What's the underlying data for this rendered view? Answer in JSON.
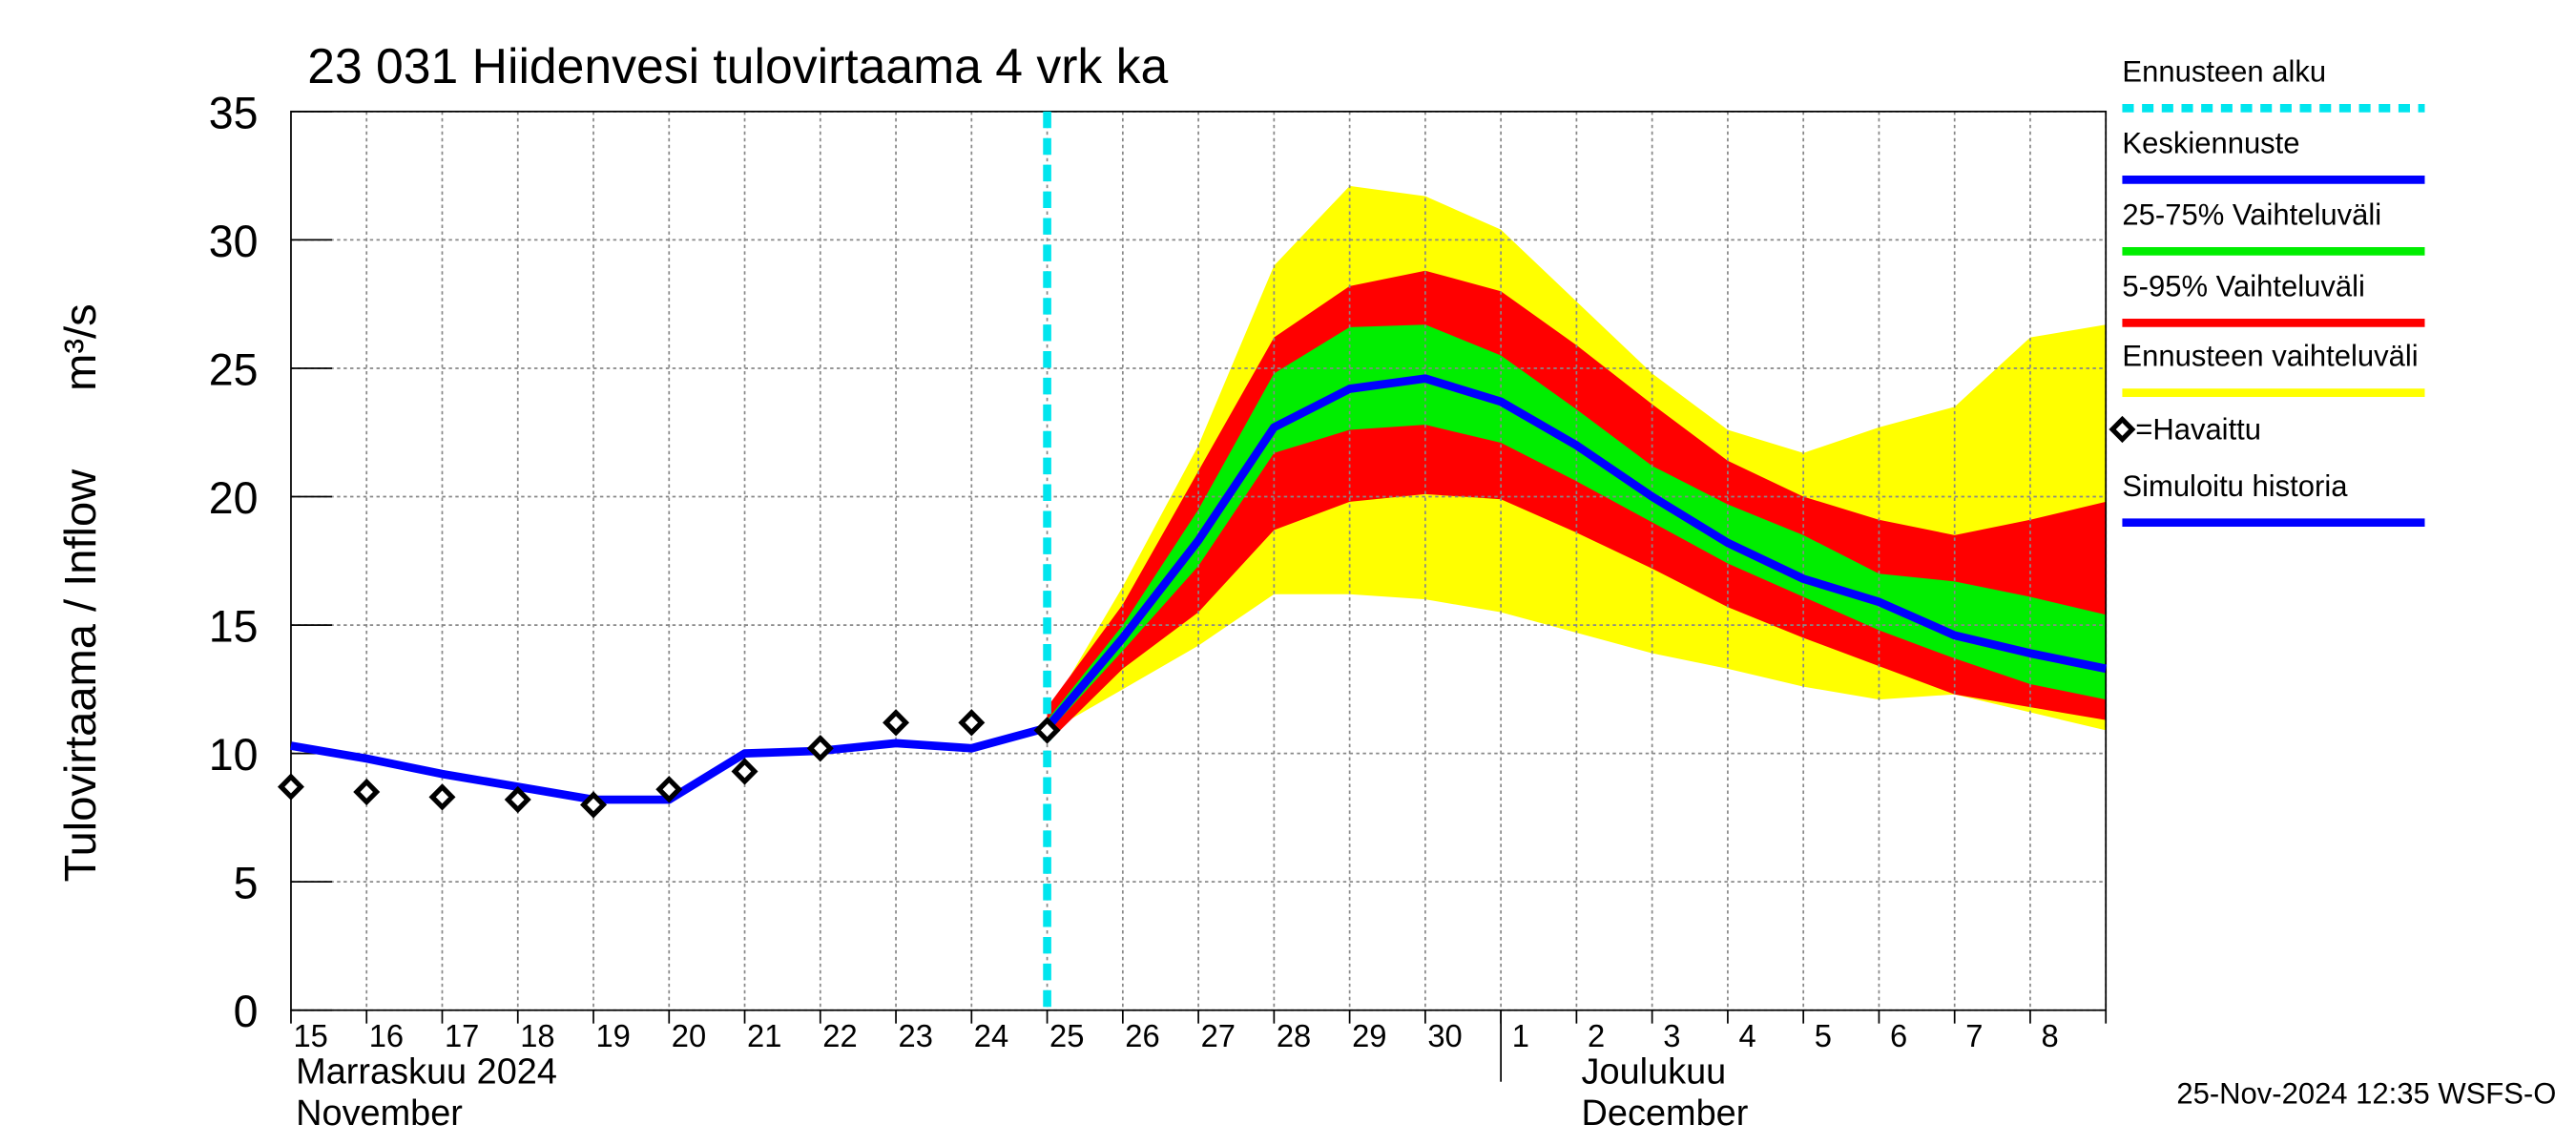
{
  "chart_data": {
    "type": "line",
    "title": "23 031 Hiidenvesi tulovirtaama 4 vrk ka",
    "y_label": "Tulovirtaama / Inflow",
    "y_unit": "m³/s",
    "month_labels": [
      "Marraskuu 2024",
      "November",
      "Joulukuu",
      "December"
    ],
    "footer": "25-Nov-2024 12:35 WSFS-O",
    "categories": [
      "15",
      "16",
      "17",
      "18",
      "19",
      "20",
      "21",
      "22",
      "23",
      "24",
      "25",
      "26",
      "27",
      "28",
      "29",
      "30",
      "1",
      "2",
      "3",
      "4",
      "5",
      "6",
      "7",
      "8",
      null
    ],
    "ylim": [
      0,
      35
    ],
    "yticks": [
      0,
      5,
      10,
      15,
      20,
      25,
      30,
      35
    ],
    "grid": true,
    "forecast_start": {
      "name": "Ennusteen alku",
      "color": "#00e5ee",
      "x": "25"
    },
    "bands": [
      {
        "name": "Ennusteen vaihteluväli",
        "color": "#ffff00",
        "upper": [
          null,
          null,
          null,
          null,
          null,
          null,
          null,
          null,
          null,
          null,
          11.5,
          16.5,
          22,
          29,
          32.1,
          31.7,
          30.4,
          27.6,
          24.8,
          22.6,
          21.7,
          22.7,
          23.5,
          26.2,
          26.7
        ],
        "lower": [
          null,
          null,
          null,
          null,
          null,
          null,
          null,
          null,
          null,
          null,
          10.8,
          12.5,
          14.2,
          16.2,
          16.2,
          16,
          15.5,
          14.7,
          13.9,
          13.3,
          12.6,
          12.1,
          12.3,
          11.6,
          10.9
        ]
      },
      {
        "name": "5-95% Vaihteluväli",
        "color": "#ff0000",
        "upper": [
          null,
          null,
          null,
          null,
          null,
          null,
          null,
          null,
          null,
          null,
          11.8,
          15.8,
          21,
          26.2,
          28.2,
          28.8,
          28,
          25.9,
          23.6,
          21.4,
          20,
          19.1,
          18.5,
          19.1,
          19.8
        ],
        "lower": [
          null,
          null,
          null,
          null,
          null,
          null,
          null,
          null,
          null,
          null,
          10.4,
          13.3,
          15.5,
          18.7,
          19.8,
          20.1,
          19.9,
          18.6,
          17.2,
          15.7,
          14.5,
          13.4,
          12.3,
          11.8,
          11.3
        ]
      },
      {
        "name": "25-75% Vaihteluväli",
        "color": "#00ee00",
        "upper": [
          null,
          null,
          null,
          null,
          null,
          null,
          null,
          null,
          null,
          null,
          11.3,
          15,
          19.5,
          24.8,
          26.6,
          26.7,
          25.5,
          23.4,
          21.2,
          19.7,
          18.5,
          17,
          16.7,
          16.1,
          15.4
        ],
        "lower": [
          null,
          null,
          null,
          null,
          null,
          null,
          null,
          null,
          null,
          null,
          10.8,
          14,
          17.3,
          21.7,
          22.6,
          22.8,
          22.1,
          20.6,
          19,
          17.4,
          16.1,
          14.8,
          13.7,
          12.7,
          12.1
        ]
      }
    ],
    "series": [
      {
        "name": "Keskiennuste",
        "color": "#0000ff",
        "values": [
          null,
          null,
          null,
          null,
          null,
          null,
          null,
          null,
          null,
          null,
          11,
          14.5,
          18.3,
          22.7,
          24.2,
          24.6,
          23.7,
          22,
          20,
          18.2,
          16.8,
          15.9,
          14.6,
          13.9,
          13.3
        ]
      },
      {
        "name": "Simuloitu historia",
        "color": "#0000ff",
        "values": [
          10.3,
          9.8,
          9.2,
          8.7,
          8.2,
          8.2,
          10,
          10.1,
          10.4,
          10.2,
          11,
          null,
          null,
          null,
          null,
          null,
          null,
          null,
          null,
          null,
          null,
          null,
          null,
          null,
          null
        ]
      }
    ],
    "observed": {
      "name": "=Havaittu",
      "color": "#000000",
      "values": [
        8.7,
        8.5,
        8.3,
        8.2,
        8,
        8.6,
        9.3,
        10.2,
        11.2,
        11.2,
        10.9,
        null,
        null,
        null,
        null,
        null,
        null,
        null,
        null,
        null,
        null,
        null,
        null,
        null,
        null
      ]
    }
  }
}
